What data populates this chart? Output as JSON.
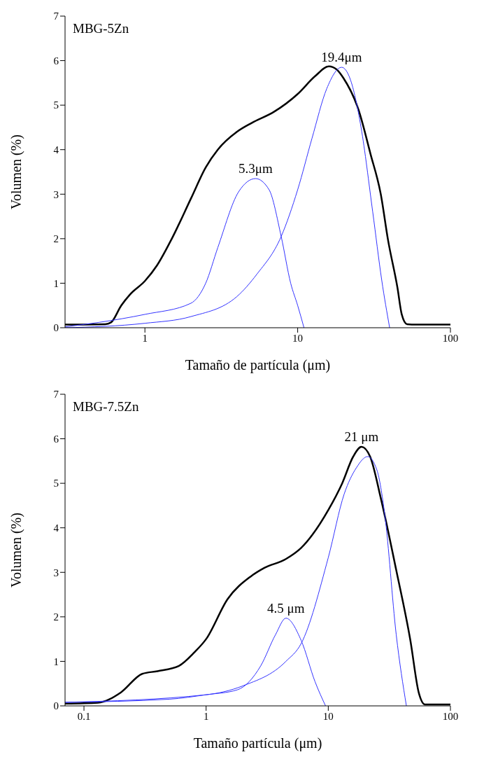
{
  "chart_data": [
    {
      "type": "line",
      "title": "MBG-5Zn",
      "xlabel": "Tamaño de partícula (μm)",
      "ylabel": "Volumen (%)",
      "log": "x",
      "xlim": [
        0.3,
        100
      ],
      "xticks": [
        1,
        10,
        100
      ],
      "ylim": [
        0,
        7
      ],
      "yticks": [
        0,
        1,
        2,
        3,
        4,
        5,
        6,
        7
      ],
      "grid": false,
      "marker": "none",
      "line_style": "solid",
      "annotations": [
        {
          "text": "5.3μm",
          "x": 5.3,
          "y": 3.35
        },
        {
          "text": "19.4μm",
          "x": 19.4,
          "y": 5.85
        }
      ],
      "series": [
        {
          "color": "#000000",
          "x": [
            0.3,
            0.55,
            0.6,
            0.7,
            0.8,
            1,
            1.2,
            1.5,
            2,
            2.5,
            3,
            4,
            5,
            7,
            10,
            13,
            16,
            18,
            20,
            25,
            30,
            35,
            39,
            45,
            48,
            52,
            60,
            100
          ],
          "values": [
            0.07,
            0.08,
            0.12,
            0.5,
            0.75,
            1.05,
            1.4,
            2.0,
            2.9,
            3.6,
            4.0,
            4.4,
            4.6,
            4.85,
            5.25,
            5.65,
            5.87,
            5.8,
            5.6,
            4.9,
            3.9,
            3.0,
            1.98,
            0.9,
            0.3,
            0.08,
            0.07,
            0.07
          ]
        },
        {
          "color": "#3333ff",
          "x": [
            0.3,
            0.5,
            1,
            2,
            2.5,
            3,
            4.1,
            5.3,
            6.5,
            7.8,
            9,
            10,
            11
          ],
          "values": [
            0.02,
            0.12,
            0.3,
            0.55,
            1.0,
            1.8,
            3.05,
            3.35,
            3.1,
            2.05,
            1.0,
            0.5,
            0
          ]
        },
        {
          "color": "#3333ff",
          "x": [
            0.3,
            1,
            2,
            4,
            5.4,
            7.8,
            10,
            12.4,
            15.5,
            19.4,
            22,
            26,
            31,
            35.5,
            40
          ],
          "values": [
            0,
            0.1,
            0.25,
            0.7,
            1.2,
            2.05,
            3.1,
            4.25,
            5.37,
            5.85,
            5.6,
            4.5,
            2.6,
            1.07,
            0
          ]
        }
      ]
    },
    {
      "type": "line",
      "title": "MBG-7.5Zn",
      "xlabel": "Tamaño partícula (μm)",
      "ylabel": "Volumen (%)",
      "log": "x",
      "xlim": [
        0.07,
        100
      ],
      "xticks": [
        0.1,
        1,
        10,
        100
      ],
      "ylim": [
        0,
        7
      ],
      "yticks": [
        0,
        1,
        2,
        3,
        4,
        5,
        6,
        7
      ],
      "grid": false,
      "marker": "none",
      "line_style": "solid",
      "annotations": [
        {
          "text": "4.5 μm",
          "x": 4.5,
          "y": 1.97
        },
        {
          "text": "21 μm",
          "x": 18.7,
          "y": 5.82
        }
      ],
      "series": [
        {
          "color": "#000000",
          "x": [
            0.07,
            0.13,
            0.2,
            0.3,
            0.4,
            0.6,
            0.8,
            1,
            1.5,
            2.3,
            3,
            4.5,
            6,
            10,
            13,
            16,
            18.7,
            22,
            27,
            36,
            47,
            55,
            62,
            100
          ],
          "values": [
            0.05,
            0.07,
            0.3,
            0.72,
            0.78,
            0.9,
            1.2,
            1.5,
            2.4,
            2.9,
            3.1,
            3.3,
            3.55,
            4.4,
            5.0,
            5.6,
            5.82,
            5.6,
            4.65,
            3.05,
            1.47,
            0.3,
            0.03,
            0.03
          ]
        },
        {
          "color": "#3333ff",
          "x": [
            0.07,
            0.5,
            1,
            1.8,
            2.8,
            3.7,
            4.5,
            6,
            7.8,
            9.5
          ],
          "values": [
            0.08,
            0.15,
            0.25,
            0.36,
            0.9,
            1.6,
            1.97,
            1.47,
            0.54,
            0
          ]
        },
        {
          "color": "#3333ff",
          "x": [
            0.07,
            1,
            2,
            4.5,
            6,
            10,
            13.5,
            17,
            21,
            25,
            29,
            36,
            43.6
          ],
          "values": [
            0.08,
            0.25,
            0.45,
            1.0,
            1.4,
            3.33,
            4.76,
            5.35,
            5.6,
            5.3,
            4.3,
            1.6,
            0
          ]
        }
      ]
    }
  ]
}
